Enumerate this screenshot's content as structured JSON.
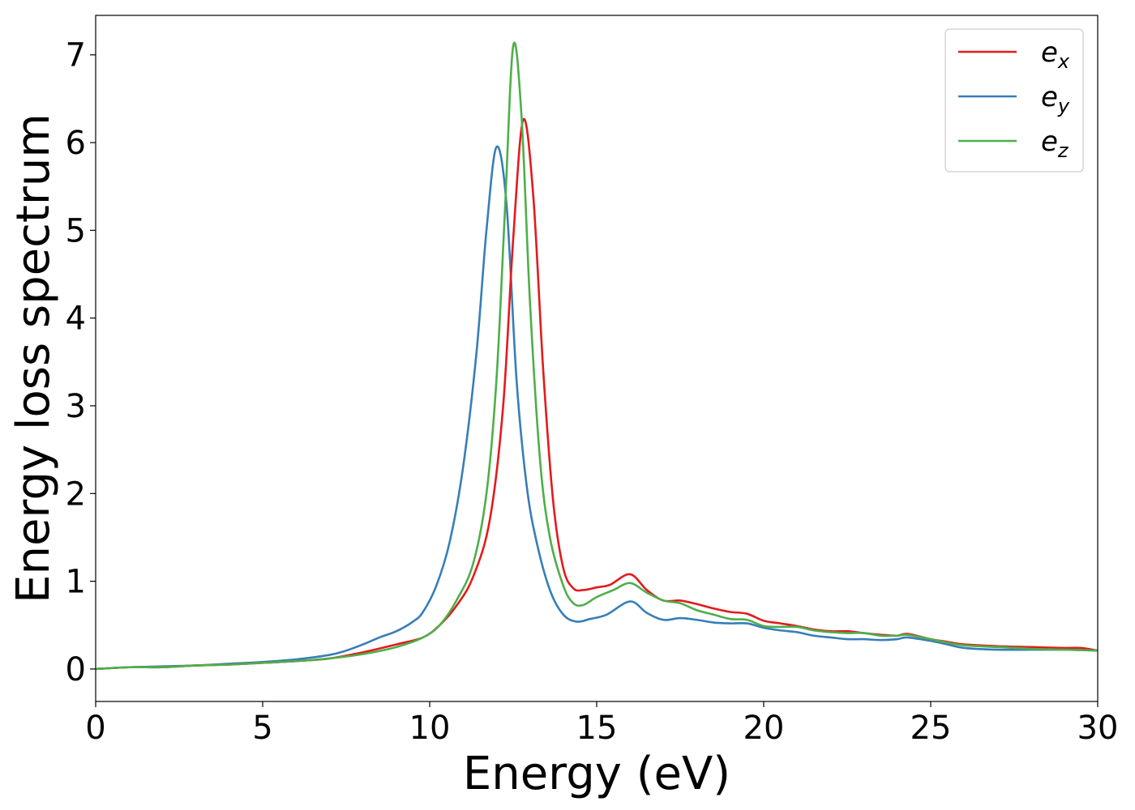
{
  "chart_data": {
    "type": "line",
    "xlabel": "Energy (eV)",
    "ylabel": "Energy loss spectrum",
    "xlim": [
      0,
      30
    ],
    "ylim": [
      -0.37,
      7.45
    ],
    "xticks": [
      0,
      5,
      10,
      15,
      20,
      25,
      30
    ],
    "yticks": [
      0,
      1,
      2,
      3,
      4,
      5,
      6,
      7
    ],
    "grid": false,
    "legend_position": "top-right",
    "series": [
      {
        "name": "e_x",
        "label_base": "e",
        "label_sub": "x",
        "color": "#e41a1c",
        "points": [
          [
            0,
            0
          ],
          [
            1,
            0.02
          ],
          [
            2,
            0.02
          ],
          [
            3,
            0.04
          ],
          [
            4,
            0.05
          ],
          [
            5,
            0.07
          ],
          [
            6,
            0.09
          ],
          [
            7,
            0.12
          ],
          [
            8,
            0.19
          ],
          [
            9,
            0.28
          ],
          [
            9.8,
            0.36
          ],
          [
            10.3,
            0.5
          ],
          [
            10.8,
            0.72
          ],
          [
            11.3,
            1.05
          ],
          [
            11.8,
            1.7
          ],
          [
            12.2,
            3.0
          ],
          [
            12.5,
            4.9
          ],
          [
            12.8,
            6.26
          ],
          [
            13.1,
            5.4
          ],
          [
            13.4,
            3.4
          ],
          [
            13.7,
            1.9
          ],
          [
            14,
            1.15
          ],
          [
            14.3,
            0.92
          ],
          [
            14.6,
            0.9
          ],
          [
            15,
            0.93
          ],
          [
            15.4,
            0.96
          ],
          [
            16,
            1.08
          ],
          [
            16.5,
            0.9
          ],
          [
            17,
            0.78
          ],
          [
            17.5,
            0.78
          ],
          [
            18,
            0.74
          ],
          [
            18.5,
            0.69
          ],
          [
            19,
            0.65
          ],
          [
            19.5,
            0.63
          ],
          [
            20,
            0.55
          ],
          [
            20.5,
            0.52
          ],
          [
            21,
            0.49
          ],
          [
            21.5,
            0.45
          ],
          [
            22,
            0.43
          ],
          [
            22.5,
            0.43
          ],
          [
            23,
            0.41
          ],
          [
            23.5,
            0.39
          ],
          [
            24,
            0.38
          ],
          [
            24.3,
            0.4
          ],
          [
            25,
            0.34
          ],
          [
            25.5,
            0.31
          ],
          [
            26,
            0.28
          ],
          [
            27,
            0.26
          ],
          [
            28,
            0.25
          ],
          [
            29,
            0.24
          ],
          [
            29.5,
            0.24
          ],
          [
            30,
            0.21
          ]
        ]
      },
      {
        "name": "e_y",
        "label_base": "e",
        "label_sub": "y",
        "color": "#377eb8",
        "points": [
          [
            0,
            0
          ],
          [
            1,
            0.02
          ],
          [
            2,
            0.03
          ],
          [
            3,
            0.04
          ],
          [
            4,
            0.06
          ],
          [
            5,
            0.08
          ],
          [
            6,
            0.11
          ],
          [
            7,
            0.16
          ],
          [
            7.5,
            0.21
          ],
          [
            8,
            0.28
          ],
          [
            8.5,
            0.36
          ],
          [
            9,
            0.43
          ],
          [
            9.5,
            0.54
          ],
          [
            9.8,
            0.65
          ],
          [
            10.2,
            0.95
          ],
          [
            10.6,
            1.45
          ],
          [
            11,
            2.3
          ],
          [
            11.4,
            3.6
          ],
          [
            11.7,
            5.0
          ],
          [
            12,
            5.95
          ],
          [
            12.3,
            5.3
          ],
          [
            12.6,
            3.3
          ],
          [
            12.9,
            2.1
          ],
          [
            13.2,
            1.45
          ],
          [
            13.6,
            0.9
          ],
          [
            14,
            0.62
          ],
          [
            14.4,
            0.54
          ],
          [
            14.8,
            0.57
          ],
          [
            15.3,
            0.62
          ],
          [
            16,
            0.77
          ],
          [
            16.5,
            0.64
          ],
          [
            17,
            0.56
          ],
          [
            17.5,
            0.58
          ],
          [
            18,
            0.56
          ],
          [
            18.5,
            0.53
          ],
          [
            19,
            0.52
          ],
          [
            19.5,
            0.52
          ],
          [
            20,
            0.47
          ],
          [
            20.5,
            0.44
          ],
          [
            21,
            0.42
          ],
          [
            21.5,
            0.38
          ],
          [
            22,
            0.36
          ],
          [
            22.5,
            0.34
          ],
          [
            23,
            0.34
          ],
          [
            23.5,
            0.33
          ],
          [
            24,
            0.34
          ],
          [
            24.3,
            0.36
          ],
          [
            25,
            0.32
          ],
          [
            25.5,
            0.28
          ],
          [
            26,
            0.24
          ],
          [
            27,
            0.22
          ],
          [
            28,
            0.22
          ],
          [
            29,
            0.22
          ],
          [
            30,
            0.21
          ]
        ]
      },
      {
        "name": "e_z",
        "label_base": "e",
        "label_sub": "z",
        "color": "#4daf4a",
        "points": [
          [
            0,
            0
          ],
          [
            1,
            0.02
          ],
          [
            2,
            0.02
          ],
          [
            3,
            0.04
          ],
          [
            4,
            0.05
          ],
          [
            5,
            0.07
          ],
          [
            6,
            0.09
          ],
          [
            7,
            0.12
          ],
          [
            8,
            0.17
          ],
          [
            9,
            0.25
          ],
          [
            9.8,
            0.36
          ],
          [
            10.3,
            0.5
          ],
          [
            10.8,
            0.78
          ],
          [
            11.3,
            1.2
          ],
          [
            11.7,
            2.0
          ],
          [
            12,
            3.3
          ],
          [
            12.25,
            5.2
          ],
          [
            12.5,
            7.1
          ],
          [
            12.75,
            6.3
          ],
          [
            13,
            4.2
          ],
          [
            13.3,
            2.4
          ],
          [
            13.6,
            1.5
          ],
          [
            14,
            0.95
          ],
          [
            14.3,
            0.75
          ],
          [
            14.6,
            0.73
          ],
          [
            15,
            0.82
          ],
          [
            15.5,
            0.9
          ],
          [
            16,
            0.98
          ],
          [
            16.5,
            0.87
          ],
          [
            17,
            0.78
          ],
          [
            17.5,
            0.75
          ],
          [
            18,
            0.67
          ],
          [
            18.5,
            0.62
          ],
          [
            19,
            0.57
          ],
          [
            19.5,
            0.56
          ],
          [
            20,
            0.49
          ],
          [
            20.5,
            0.48
          ],
          [
            21,
            0.48
          ],
          [
            21.5,
            0.44
          ],
          [
            22,
            0.42
          ],
          [
            22.5,
            0.41
          ],
          [
            23,
            0.41
          ],
          [
            23.5,
            0.38
          ],
          [
            24,
            0.38
          ],
          [
            24.3,
            0.39
          ],
          [
            25,
            0.34
          ],
          [
            25.5,
            0.3
          ],
          [
            26,
            0.27
          ],
          [
            27,
            0.25
          ],
          [
            28,
            0.23
          ],
          [
            29,
            0.22
          ],
          [
            30,
            0.21
          ]
        ]
      }
    ]
  }
}
